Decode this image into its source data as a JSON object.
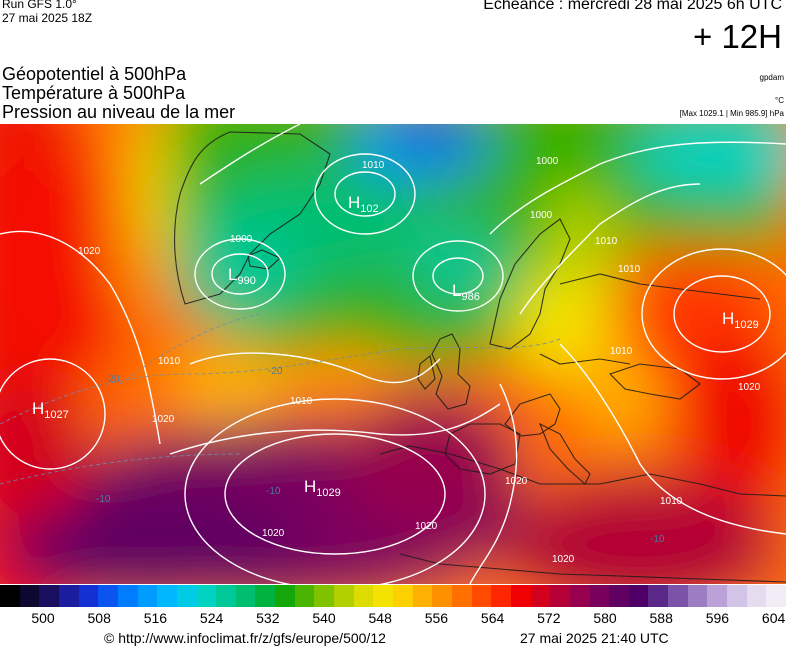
{
  "header": {
    "run_label": "Run GFS 1.0°",
    "run_date": "27 mai 2025 18Z",
    "echeance": "Echéance : mercredi 28 mai 2025 6h UTC",
    "offset": "+ 12H"
  },
  "layers": {
    "line1": "Géopotentiel à 500hPa",
    "line2": "Température à 500hPa",
    "line3": "Pression au niveau de la mer"
  },
  "units": {
    "geopotential": "gpdam",
    "temperature": "°C",
    "pressure_range": "[Max 1029.1 | Min 985.9] hPa"
  },
  "map": {
    "pressure_centers": [
      {
        "type": "H",
        "value": "1027",
        "name": "high-west-atlantic"
      },
      {
        "type": "H",
        "value": "1029",
        "name": "high-azores"
      },
      {
        "type": "H",
        "value": "1029",
        "name": "high-east-europe"
      },
      {
        "type": "H",
        "value": "102",
        "name": "high-greenland"
      },
      {
        "type": "L",
        "value": "990",
        "name": "low-west"
      },
      {
        "type": "L",
        "value": "986",
        "name": "low-north-sea"
      }
    ],
    "isobar_labels": [
      "1010",
      "1000",
      "1000",
      "1020",
      "1010",
      "1010",
      "1020",
      "1010",
      "1020",
      "1020",
      "1010",
      "1020",
      "1020",
      "1000",
      "1010",
      "1010",
      "1020"
    ],
    "isotherm_labels": [
      "-20",
      "-20",
      "-10",
      "-10",
      "-10"
    ]
  },
  "colorbar": {
    "ticks": [
      "500",
      "508",
      "516",
      "524",
      "532",
      "540",
      "548",
      "556",
      "564",
      "572",
      "580",
      "588",
      "596",
      "604"
    ],
    "colors": [
      "#000000",
      "#0d0830",
      "#1a0f5e",
      "#1a1d9e",
      "#1530d2",
      "#0a55f0",
      "#007dff",
      "#009cff",
      "#00b8ff",
      "#00cbe4",
      "#00d3c2",
      "#00c898",
      "#00be70",
      "#00b240",
      "#15a70a",
      "#4ab400",
      "#7fc300",
      "#b2d000",
      "#dcdc00",
      "#f4e300",
      "#ffd000",
      "#ffb000",
      "#ff9000",
      "#ff7000",
      "#ff4a00",
      "#ff2600",
      "#f00000",
      "#d2001c",
      "#b40036",
      "#96004e",
      "#7a005e",
      "#600062",
      "#4e0068",
      "#5a2888",
      "#7a52a8",
      "#9c7cc2",
      "#baa2d8",
      "#d2c4e6",
      "#e6dcf0",
      "#f2ecf6"
    ]
  },
  "footer": {
    "url": "© http://www.infoclimat.fr/z/gfs/europe/500/12",
    "generated": "27 mai 2025 21:40 UTC"
  }
}
